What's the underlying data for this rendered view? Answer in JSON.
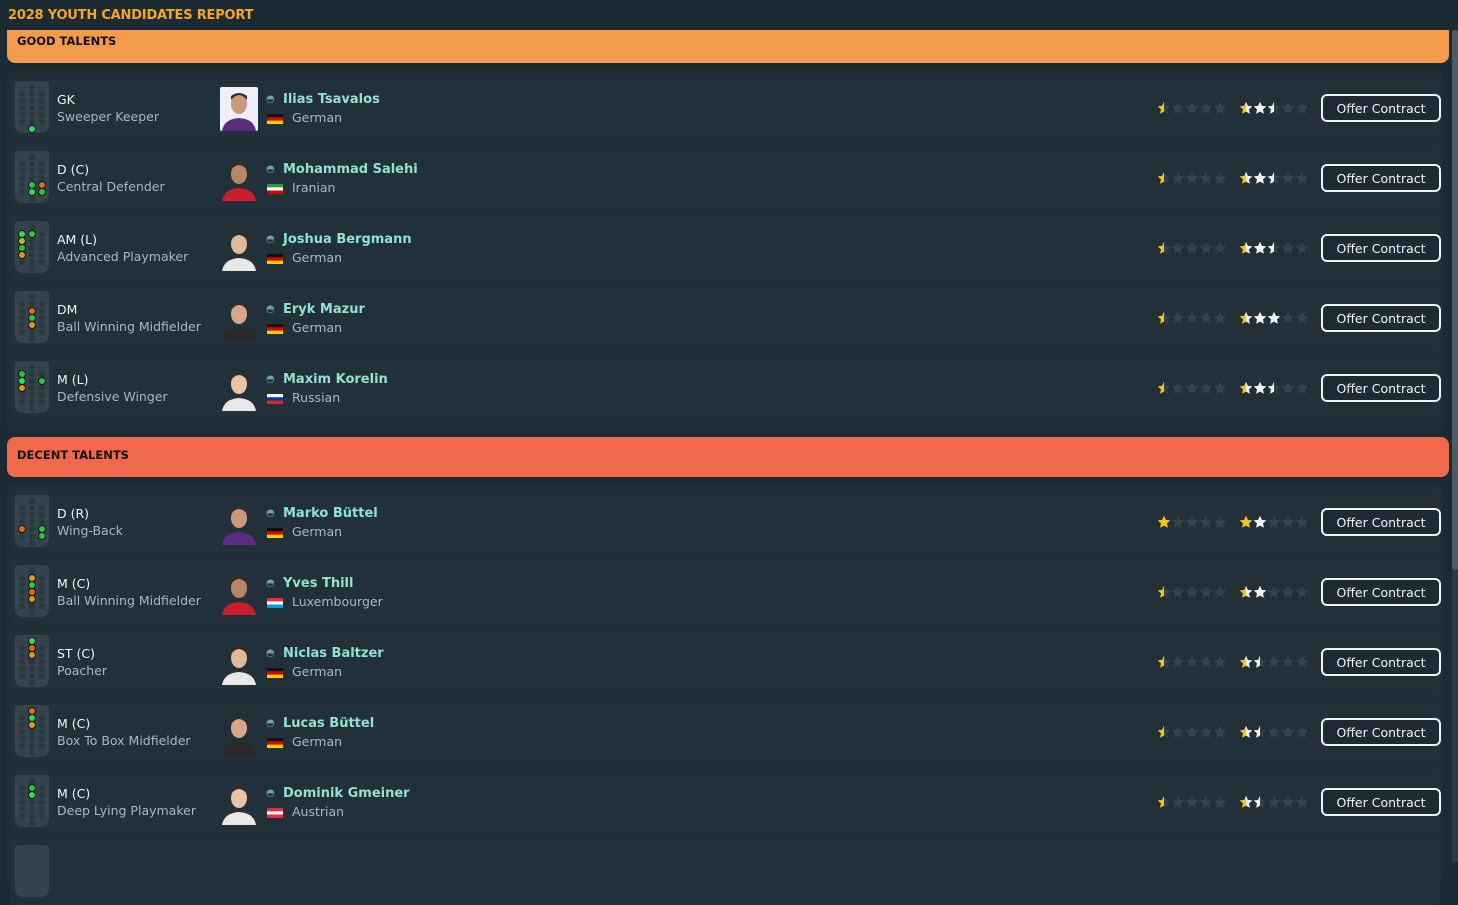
{
  "title": "2028 YOUTH CANDIDATES REPORT",
  "colors": {
    "accent": "#f5a623",
    "good_band": "#f39a4b",
    "decent_band": "#f0694a",
    "name": "#8fe3cf",
    "star_gold": "#f5c518",
    "star_white": "#f2f2f2",
    "star_dim": "#33434c"
  },
  "sections": [
    {
      "label": "GOOD TALENTS",
      "players": [
        {
          "position": "GK",
          "role": "Sweeper Keeper",
          "name": "Ilias Tsavalos",
          "nationality": "German",
          "flag": "germany",
          "ability": 0.5,
          "potential": 2.5,
          "pitch": [
            [
              5,
              1,
              "#22e35a"
            ]
          ],
          "button": "Offer Contract"
        },
        {
          "position": "D (C)",
          "role": "Central Defender",
          "name": "Mohammad Salehi",
          "nationality": "Iranian",
          "flag": "iran",
          "ability": 0.5,
          "potential": 2.5,
          "pitch": [
            [
              3,
              1,
              "#22c93f"
            ],
            [
              3,
              2,
              "#e06a10"
            ],
            [
              4,
              1,
              "#22e35a"
            ],
            [
              4,
              2,
              "#22c93f"
            ]
          ],
          "button": "Offer Contract"
        },
        {
          "position": "AM (L)",
          "role": "Advanced Playmaker",
          "name": "Joshua Bergmann",
          "nationality": "German",
          "flag": "germany",
          "ability": 0.5,
          "potential": 2.5,
          "pitch": [
            [
              0,
              0,
              "#22e35a"
            ],
            [
              0,
              1,
              "#22c93f"
            ],
            [
              1,
              0,
              "#b8c020"
            ],
            [
              2,
              0,
              "#22c93f"
            ],
            [
              3,
              0,
              "#e09a10"
            ]
          ],
          "button": "Offer Contract"
        },
        {
          "position": "DM",
          "role": "Ball Winning Midfielder",
          "name": "Eryk Mazur",
          "nationality": "German",
          "flag": "germany",
          "ability": 0.5,
          "potential": 3,
          "pitch": [
            [
              1,
              1,
              "#e06a10"
            ],
            [
              2,
              1,
              "#22c93f"
            ],
            [
              3,
              1,
              "#e09a10"
            ]
          ],
          "button": "Offer Contract"
        },
        {
          "position": "M (L)",
          "role": "Defensive Winger",
          "name": "Maxim Korelin",
          "nationality": "Russian",
          "flag": "russia",
          "ability": 0.5,
          "potential": 2.5,
          "pitch": [
            [
              0,
              0,
              "#22c93f"
            ],
            [
              1,
              0,
              "#22e35a"
            ],
            [
              1,
              2,
              "#22c93f"
            ],
            [
              2,
              0,
              "#e09a10"
            ]
          ],
          "button": "Offer Contract"
        }
      ]
    },
    {
      "label": "DECENT TALENTS",
      "players": [
        {
          "position": "D (R)",
          "role": "Wing-Back",
          "name": "Marko Büttel",
          "nationality": "German",
          "flag": "germany",
          "ability": 1,
          "potential": 2,
          "pitch": [
            [
              3,
              0,
              "#e06a10"
            ],
            [
              3,
              2,
              "#22c93f"
            ],
            [
              4,
              2,
              "#22c93f"
            ]
          ],
          "button": "Offer Contract"
        },
        {
          "position": "M (C)",
          "role": "Ball Winning Midfielder",
          "name": "Yves Thill",
          "nationality": "Luxembourger",
          "flag": "luxembourg",
          "ability": 0.5,
          "potential": 2,
          "pitch": [
            [
              0,
              1,
              "#e09a10"
            ],
            [
              1,
              1,
              "#22c93f"
            ],
            [
              2,
              1,
              "#e06a10"
            ],
            [
              3,
              1,
              "#e09a10"
            ]
          ],
          "button": "Offer Contract"
        },
        {
          "position": "ST (C)",
          "role": "Poacher",
          "name": "Niclas Baltzer",
          "nationality": "German",
          "flag": "germany",
          "ability": 0.5,
          "potential": 1.5,
          "pitch": [
            [
              -1,
              1,
              "#22e35a"
            ],
            [
              0,
              1,
              "#e06a10"
            ],
            [
              1,
              1,
              "#e09a10"
            ]
          ],
          "button": "Offer Contract"
        },
        {
          "position": "M (C)",
          "role": "Box To Box Midfielder",
          "name": "Lucas Büttel",
          "nationality": "German",
          "flag": "germany",
          "ability": 0.5,
          "potential": 1.5,
          "pitch": [
            [
              -1,
              1,
              "#e06a10"
            ],
            [
              0,
              1,
              "#22e35a"
            ],
            [
              1,
              1,
              "#e09a10"
            ]
          ],
          "button": "Offer Contract"
        },
        {
          "position": "M (C)",
          "role": "Deep Lying Playmaker",
          "name": "Dominik Gmeiner",
          "nationality": "Austrian",
          "flag": "austria",
          "ability": 0.5,
          "potential": 1.5,
          "pitch": [
            [
              0,
              1,
              "#22c93f"
            ],
            [
              1,
              1,
              "#22e35a"
            ]
          ],
          "button": "Offer Contract"
        }
      ]
    }
  ]
}
